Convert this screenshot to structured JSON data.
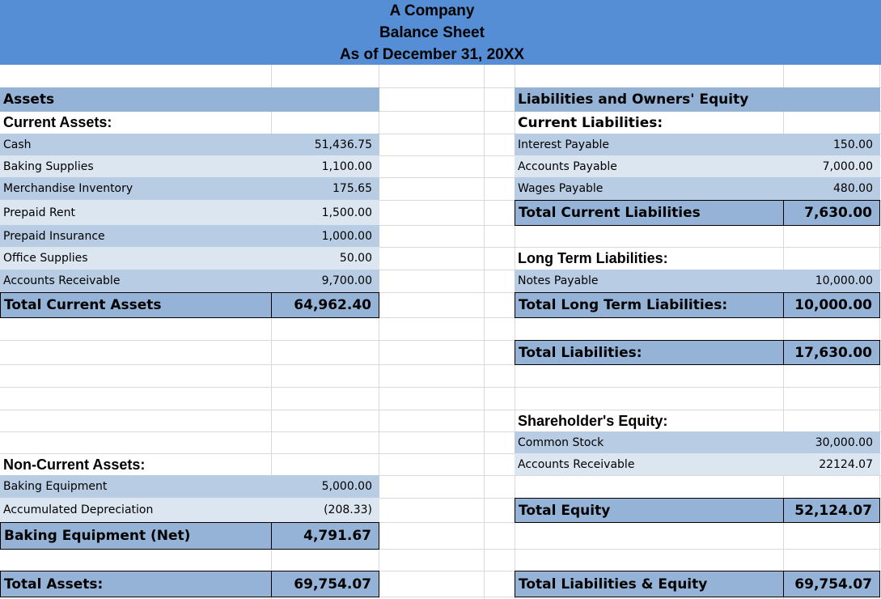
{
  "header": {
    "company": "A Company",
    "title": "Balance Sheet",
    "date": "As of December 31, 20XX"
  },
  "assets": {
    "heading": "Assets",
    "current": {
      "heading": "Current Assets:",
      "rows": [
        [
          "Cash",
          "51,436.75"
        ],
        [
          "Baking Supplies",
          "1,100.00"
        ],
        [
          "Merchandise Inventory",
          "175.65"
        ],
        [
          "Prepaid Rent",
          "1,500.00"
        ],
        [
          "Prepaid Insurance",
          "1,000.00"
        ],
        [
          "Office Supplies",
          "50.00"
        ],
        [
          "Accounts Receivable",
          "9,700.00"
        ]
      ],
      "total": [
        "Total Current Assets",
        "64,962.40"
      ]
    },
    "non_current": {
      "heading": "Non-Current Assets:",
      "rows": [
        [
          "Baking Equipment",
          "5,000.00"
        ],
        [
          "Accumulated Depreciation",
          "(208.33)"
        ]
      ],
      "total": [
        "Baking Equipment (Net)",
        "4,791.67"
      ]
    },
    "total": [
      "Total Assets:",
      "69,754.07"
    ]
  },
  "liabilities_equity": {
    "heading": "Liabilities and Owners' Equity",
    "current": {
      "heading": "Current Liabilities:",
      "rows": [
        [
          "Interest Payable",
          "150.00"
        ],
        [
          "Accounts Payable",
          "7,000.00"
        ],
        [
          "Wages Payable",
          "480.00"
        ]
      ],
      "total": [
        "Total Current Liabilities",
        "7,630.00"
      ]
    },
    "long_term": {
      "heading": "Long Term Liabilities:",
      "rows": [
        [
          "Notes Payable",
          "10,000.00"
        ]
      ],
      "total": [
        "Total Long Term Liabilities:",
        "10,000.00"
      ]
    },
    "total_liabilities": [
      "Total Liabilities:",
      "17,630.00"
    ],
    "equity": {
      "heading": "Shareholder's Equity:",
      "rows": [
        [
          "Common Stock",
          "30,000.00"
        ],
        [
          "Accounts Receivable",
          "22124.07"
        ]
      ],
      "total": [
        "Total Equity",
        "52,124.07"
      ]
    },
    "total": [
      "Total Liabilities & Equity",
      "69,754.07"
    ]
  }
}
